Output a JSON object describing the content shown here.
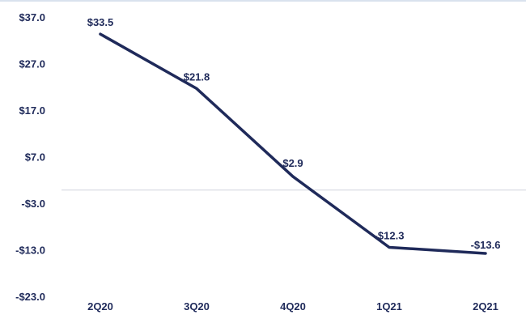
{
  "chart_data": {
    "type": "line",
    "title": "",
    "xlabel": "",
    "ylabel": "",
    "categories": [
      "2Q20",
      "3Q20",
      "4Q20",
      "1Q21",
      "2Q21"
    ],
    "series": [
      {
        "values": [
          33.5,
          21.8,
          2.9,
          -12.3,
          -13.6
        ]
      }
    ],
    "data_labels": [
      "$33.5",
      "$21.8",
      "$2.9",
      "-$12.3",
      "-$13.6"
    ],
    "y_ticks": [
      37.0,
      27.0,
      17.0,
      7.0,
      -3.0,
      -13.0,
      -23.0
    ],
    "y_tick_labels": [
      "$37.0",
      "$27.0",
      "$17.0",
      "$7.0",
      "-$3.0",
      "-$13.0",
      "-$23.0"
    ],
    "ylim": [
      -23.0,
      37.0
    ],
    "grid": false,
    "zero_line": true,
    "legend": "none",
    "colors": {
      "line": "#1f2a5a",
      "text": "#1f2a5a",
      "zero_line": "#d0d4de",
      "top_border": "#d9e2ee"
    }
  }
}
